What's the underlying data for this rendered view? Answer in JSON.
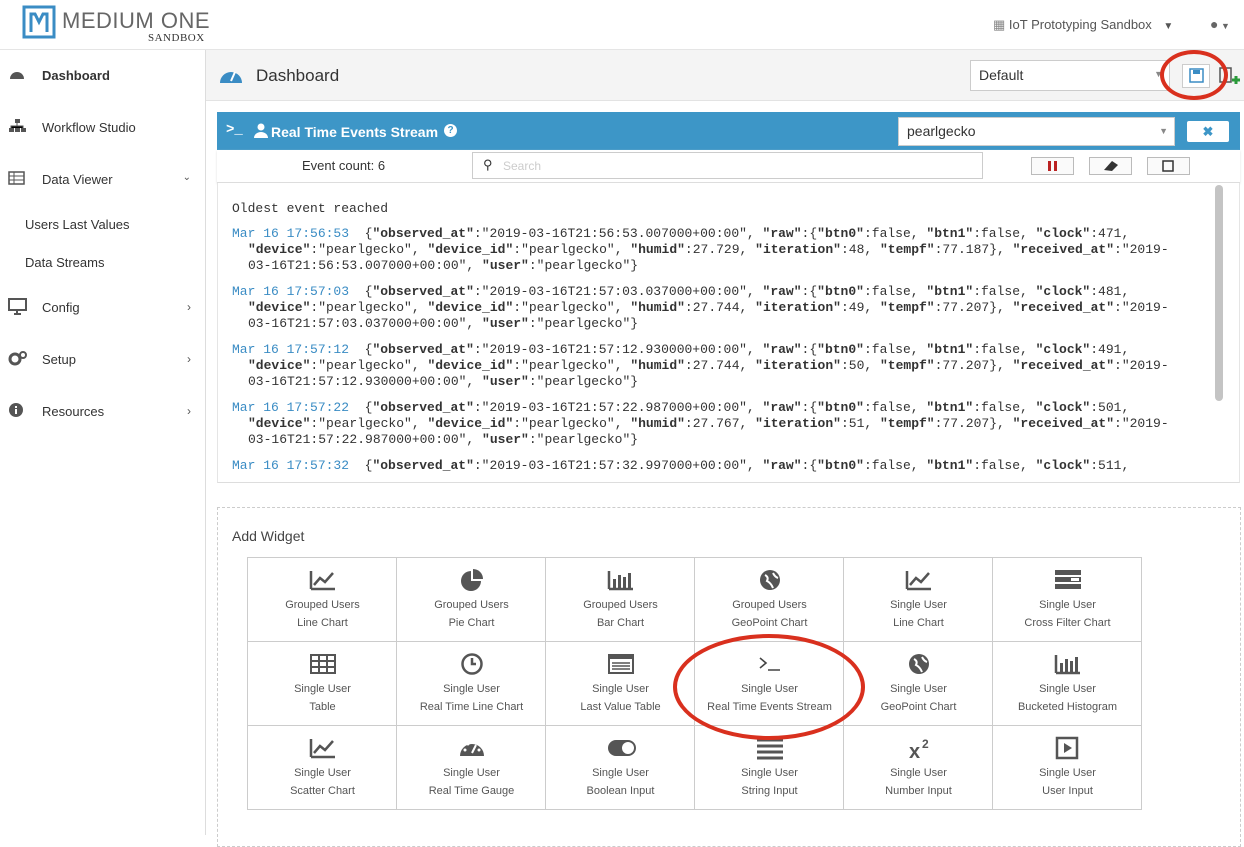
{
  "header": {
    "logo_name": "MEDIUM ONE",
    "logo_sub": "SANDBOX",
    "project": "IoT Prototyping Sandbox"
  },
  "sidebar": {
    "items": [
      "Dashboard",
      "Workflow Studio",
      "Data Viewer",
      "Users Last Values",
      "Data Streams",
      "Config",
      "Setup",
      "Resources"
    ]
  },
  "page": {
    "title": "Dashboard",
    "dashboard_select": "Default"
  },
  "widget": {
    "title": "Real Time Events Stream",
    "user_select": "pearlgecko",
    "event_count": "Event count: 6",
    "search_placeholder": "Search",
    "oldest": "Oldest event reached",
    "events": [
      {
        "time": "Mar 16 17:56:53",
        "body": "{\"observed_at\":\"2019-03-16T21:56:53.007000+00:00\", \"raw\":{\"btn0\":false, \"btn1\":false, \"clock\":471, \"device\":\"pearlgecko\", \"device_id\":\"pearlgecko\", \"humid\":27.729, \"iteration\":48, \"tempf\":77.187}, \"received_at\":\"2019-03-16T21:56:53.007000+00:00\", \"user\":\"pearlgecko\"}"
      },
      {
        "time": "Mar 16 17:57:03",
        "body": "{\"observed_at\":\"2019-03-16T21:57:03.037000+00:00\", \"raw\":{\"btn0\":false, \"btn1\":false, \"clock\":481, \"device\":\"pearlgecko\", \"device_id\":\"pearlgecko\", \"humid\":27.744, \"iteration\":49, \"tempf\":77.207}, \"received_at\":\"2019-03-16T21:57:03.037000+00:00\", \"user\":\"pearlgecko\"}"
      },
      {
        "time": "Mar 16 17:57:12",
        "body": "{\"observed_at\":\"2019-03-16T21:57:12.930000+00:00\", \"raw\":{\"btn0\":false, \"btn1\":false, \"clock\":491, \"device\":\"pearlgecko\", \"device_id\":\"pearlgecko\", \"humid\":27.744, \"iteration\":50, \"tempf\":77.207}, \"received_at\":\"2019-03-16T21:57:12.930000+00:00\", \"user\":\"pearlgecko\"}"
      },
      {
        "time": "Mar 16 17:57:22",
        "body": "{\"observed_at\":\"2019-03-16T21:57:22.987000+00:00\", \"raw\":{\"btn0\":false, \"btn1\":false, \"clock\":501, \"device\":\"pearlgecko\", \"device_id\":\"pearlgecko\", \"humid\":27.767, \"iteration\":51, \"tempf\":77.207}, \"received_at\":\"2019-03-16T21:57:22.987000+00:00\", \"user\":\"pearlgecko\"}"
      },
      {
        "time": "Mar 16 17:57:32",
        "body": "{\"observed_at\":\"2019-03-16T21:57:32.997000+00:00\", \"raw\":{\"btn0\":false, \"btn1\":false, \"clock\":511,"
      }
    ]
  },
  "add_widget": {
    "title": "Add Widget",
    "tiles": [
      {
        "icon": "line",
        "line1": "Grouped Users",
        "line2": "Line Chart"
      },
      {
        "icon": "pie",
        "line1": "Grouped Users",
        "line2": "Pie Chart"
      },
      {
        "icon": "bar",
        "line1": "Grouped Users",
        "line2": "Bar Chart"
      },
      {
        "icon": "globe",
        "line1": "Grouped Users",
        "line2": "GeoPoint Chart"
      },
      {
        "icon": "line",
        "line1": "Single User",
        "line2": "Line Chart"
      },
      {
        "icon": "filter",
        "line1": "Single User",
        "line2": "Cross Filter Chart"
      },
      {
        "icon": "table",
        "line1": "Single User",
        "line2": "Table"
      },
      {
        "icon": "clock",
        "line1": "Single User",
        "line2": "Real Time Line Chart"
      },
      {
        "icon": "list",
        "line1": "Single User",
        "line2": "Last Value Table"
      },
      {
        "icon": "term",
        "line1": "Single User",
        "line2": "Real Time Events Stream"
      },
      {
        "icon": "globe",
        "line1": "Single User",
        "line2": "GeoPoint Chart"
      },
      {
        "icon": "bar",
        "line1": "Single User",
        "line2": "Bucketed Histogram"
      },
      {
        "icon": "line",
        "line1": "Single User",
        "line2": "Scatter Chart"
      },
      {
        "icon": "gauge",
        "line1": "Single User",
        "line2": "Real Time Gauge"
      },
      {
        "icon": "toggle",
        "line1": "Single User",
        "line2": "Boolean Input"
      },
      {
        "icon": "lines",
        "line1": "Single User",
        "line2": "String Input"
      },
      {
        "icon": "sup",
        "line1": "Single User",
        "line2": "Number Input"
      },
      {
        "icon": "play",
        "line1": "Single User",
        "line2": "User Input"
      }
    ]
  }
}
